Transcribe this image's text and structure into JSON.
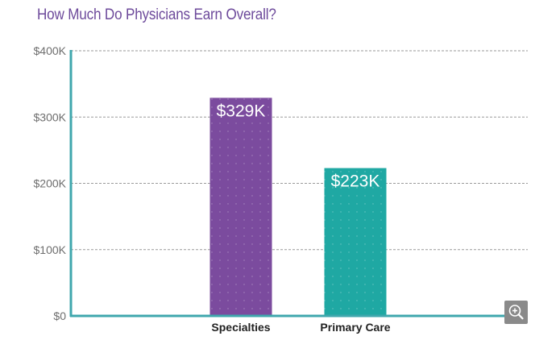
{
  "chart_data": {
    "type": "bar",
    "title": "How Much Do Physicians Earn Overall?",
    "categories": [
      "Specialties",
      "Primary Care"
    ],
    "values": [
      329,
      223
    ],
    "data_labels": [
      "$329K",
      "$223K"
    ],
    "y_ticks": [
      "$0",
      "$100K",
      "$200K",
      "$300K",
      "$400K"
    ],
    "y_tick_values": [
      0,
      100,
      200,
      300,
      400
    ],
    "ylim": [
      0,
      400
    ],
    "y_unit": "thousands of dollars",
    "xlabel": "",
    "ylabel": "",
    "grid": "horizontal dashed",
    "legend": "none",
    "colors": {
      "bars": [
        "#7b4b9e",
        "#1fa8a3"
      ],
      "axis": "#3fa7ad",
      "grid": "#9a9a9a",
      "title": "#6d4a9b"
    }
  },
  "controls": {
    "zoom_icon": "zoom-in-magnifier-icon"
  }
}
